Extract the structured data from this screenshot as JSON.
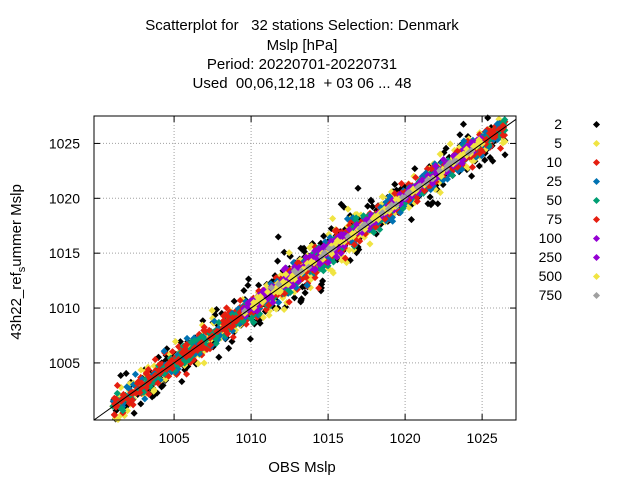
{
  "chart_data": {
    "type": "scatter",
    "title_lines": [
      "Scatterplot for   32 stations Selection: Denmark",
      "Mslp [hPa]",
      "Period: 20220701-20220731",
      "Used  00,06,12,18  + 03 06 ... 48"
    ],
    "xlabel": "OBS Mslp",
    "ylabel": "43h22_ref_summer Mslp",
    "xlim": [
      999.8,
      1027.2
    ],
    "ylim": [
      999.8,
      1027.5
    ],
    "xticks": [
      1005,
      1010,
      1015,
      1020,
      1025
    ],
    "yticks": [
      1005,
      1010,
      1015,
      1020,
      1025
    ],
    "grid": true,
    "diagonal_line": true,
    "legend_position": "right",
    "series": [
      {
        "name": "2",
        "color": "#000000"
      },
      {
        "name": "5",
        "color": "#f0e442"
      },
      {
        "name": "10",
        "color": "#e51e10"
      },
      {
        "name": "25",
        "color": "#0072b2"
      },
      {
        "name": "50",
        "color": "#009e73"
      },
      {
        "name": "75",
        "color": "#e51e10"
      },
      {
        "name": "100",
        "color": "#9400d3"
      },
      {
        "name": "250",
        "color": "#9400d3"
      },
      {
        "name": "500",
        "color": "#f0e442"
      },
      {
        "name": "750",
        "color": "#a0a0a0"
      }
    ]
  }
}
